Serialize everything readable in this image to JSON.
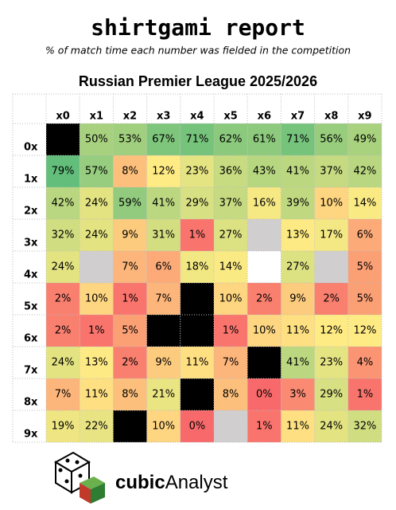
{
  "header": {
    "title": "shirtgami report",
    "subtitle": "% of match time each number was fielded in the competition"
  },
  "chart_data": {
    "type": "heatmap",
    "title": "Russian Premier League 2025/2026",
    "columns": [
      "x0",
      "x1",
      "x2",
      "x3",
      "x4",
      "x5",
      "x6",
      "x7",
      "x8",
      "x9"
    ],
    "rows": [
      "0x",
      "1x",
      "2x",
      "3x",
      "4x",
      "5x",
      "6x",
      "7x",
      "8x",
      "9x"
    ],
    "values": [
      [
        null,
        50,
        53,
        67,
        71,
        62,
        61,
        71,
        56,
        49
      ],
      [
        79,
        57,
        8,
        12,
        23,
        36,
        43,
        41,
        37,
        42
      ],
      [
        42,
        24,
        59,
        41,
        29,
        37,
        16,
        39,
        10,
        14
      ],
      [
        32,
        24,
        9,
        31,
        1,
        27,
        null,
        13,
        17,
        6
      ],
      [
        24,
        null,
        7,
        6,
        18,
        14,
        null,
        27,
        null,
        5
      ],
      [
        2,
        10,
        1,
        7,
        null,
        10,
        2,
        9,
        2,
        5
      ],
      [
        2,
        1,
        5,
        null,
        null,
        1,
        10,
        11,
        12,
        12
      ],
      [
        24,
        13,
        2,
        9,
        11,
        7,
        null,
        41,
        23,
        4
      ],
      [
        7,
        11,
        8,
        21,
        null,
        8,
        0,
        3,
        29,
        1
      ],
      [
        19,
        22,
        null,
        10,
        0,
        null,
        1,
        11,
        24,
        32
      ]
    ],
    "value_labels": [
      [
        null,
        "50%",
        "53%",
        "67%",
        "71%",
        "62%",
        "61%",
        "71%",
        "56%",
        "49%"
      ],
      [
        "79%",
        "57%",
        "8%",
        "12%",
        "23%",
        "36%",
        "43%",
        "41%",
        "37%",
        "42%"
      ],
      [
        "42%",
        "24%",
        "59%",
        "41%",
        "29%",
        "37%",
        "16%",
        "39%",
        "10%",
        "14%"
      ],
      [
        "32%",
        "24%",
        "9%",
        "31%",
        "1%",
        "27%",
        null,
        "13%",
        "17%",
        "6%"
      ],
      [
        "24%",
        null,
        "7%",
        "6%",
        "18%",
        "14%",
        null,
        "27%",
        null,
        "5%"
      ],
      [
        "2%",
        "10%",
        "1%",
        "7%",
        null,
        "10%",
        "2%",
        "9%",
        "2%",
        "5%"
      ],
      [
        "2%",
        "1%",
        "5%",
        null,
        null,
        "1%",
        "10%",
        "11%",
        "12%",
        "12%"
      ],
      [
        "24%",
        "13%",
        "2%",
        "9%",
        "11%",
        "7%",
        null,
        "41%",
        "23%",
        "4%"
      ],
      [
        "7%",
        "11%",
        "8%",
        "21%",
        null,
        "8%",
        "0%",
        "3%",
        "29%",
        "1%"
      ],
      [
        "19%",
        "22%",
        null,
        "10%",
        "0%",
        null,
        "1%",
        "11%",
        "24%",
        "32%"
      ]
    ],
    "colorscale": [
      [
        0,
        "#f8696b"
      ],
      [
        12,
        "#ffeb84"
      ],
      [
        79,
        "#63be7b"
      ]
    ],
    "blanks": [
      {
        "row": 0,
        "col": 0,
        "color": "#000000"
      },
      {
        "row": 3,
        "col": 6,
        "color": "#d0cece"
      },
      {
        "row": 4,
        "col": 1,
        "color": "#d0cece"
      },
      {
        "row": 4,
        "col": 6,
        "color": "#ffffff"
      },
      {
        "row": 4,
        "col": 8,
        "color": "#d0cece"
      },
      {
        "row": 5,
        "col": 4,
        "color": "#000000"
      },
      {
        "row": 6,
        "col": 3,
        "color": "#000000"
      },
      {
        "row": 6,
        "col": 4,
        "color": "#000000"
      },
      {
        "row": 7,
        "col": 6,
        "color": "#000000"
      },
      {
        "row": 8,
        "col": 4,
        "color": "#000000"
      },
      {
        "row": 9,
        "col": 2,
        "color": "#000000"
      },
      {
        "row": 9,
        "col": 5,
        "color": "#d0cece"
      }
    ]
  },
  "logo": {
    "bold": "cubic",
    "rest": "Analyst"
  }
}
